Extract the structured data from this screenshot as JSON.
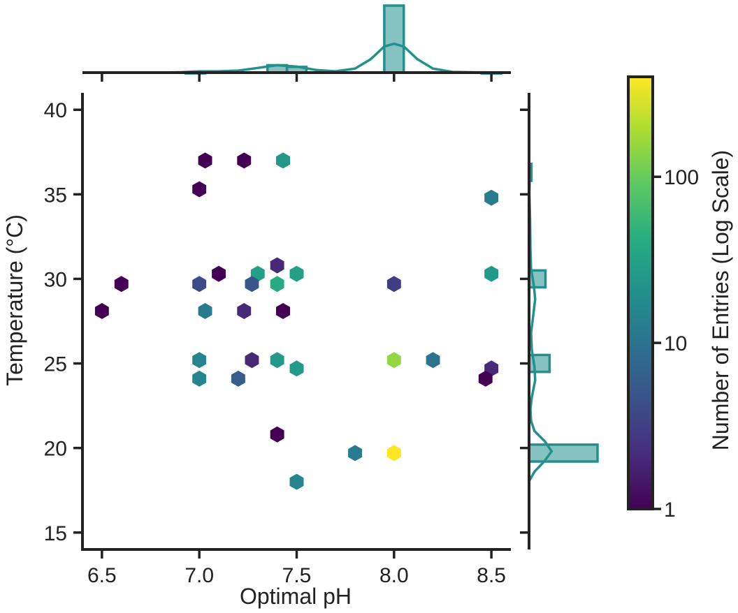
{
  "chart_data": {
    "type": "hexbin-joint",
    "xlabel": "Optimal pH",
    "ylabel": "Temperature (°C)",
    "xlim": [
      6.4,
      8.6
    ],
    "ylim": [
      14,
      41
    ],
    "x_ticks": [
      "6.5",
      "7.0",
      "7.5",
      "8.0",
      "8.5"
    ],
    "x_tick_values": [
      6.5,
      7.0,
      7.5,
      8.0,
      8.5
    ],
    "y_ticks": [
      "15",
      "20",
      "25",
      "30",
      "35",
      "40"
    ],
    "y_tick_values": [
      15,
      20,
      25,
      30,
      35,
      40
    ],
    "hexbins": [
      {
        "x": 7.03,
        "y": 37.0,
        "count": 1
      },
      {
        "x": 7.23,
        "y": 37.0,
        "count": 1
      },
      {
        "x": 7.43,
        "y": 37.0,
        "count": 25
      },
      {
        "x": 7.0,
        "y": 35.3,
        "count": 1
      },
      {
        "x": 8.5,
        "y": 34.8,
        "count": 12
      },
      {
        "x": 7.4,
        "y": 30.8,
        "count": 2
      },
      {
        "x": 7.1,
        "y": 30.3,
        "count": 1
      },
      {
        "x": 7.3,
        "y": 30.3,
        "count": 30
      },
      {
        "x": 7.5,
        "y": 30.3,
        "count": 30
      },
      {
        "x": 8.5,
        "y": 30.3,
        "count": 25
      },
      {
        "x": 6.6,
        "y": 29.7,
        "count": 1
      },
      {
        "x": 7.0,
        "y": 29.7,
        "count": 4
      },
      {
        "x": 7.27,
        "y": 29.7,
        "count": 5
      },
      {
        "x": 7.4,
        "y": 29.7,
        "count": 40
      },
      {
        "x": 8.0,
        "y": 29.7,
        "count": 3
      },
      {
        "x": 6.5,
        "y": 28.1,
        "count": 1
      },
      {
        "x": 7.03,
        "y": 28.1,
        "count": 12
      },
      {
        "x": 7.23,
        "y": 28.1,
        "count": 2
      },
      {
        "x": 7.43,
        "y": 28.1,
        "count": 1
      },
      {
        "x": 7.0,
        "y": 25.2,
        "count": 15
      },
      {
        "x": 7.27,
        "y": 25.2,
        "count": 2
      },
      {
        "x": 7.4,
        "y": 25.2,
        "count": 25
      },
      {
        "x": 8.0,
        "y": 25.2,
        "count": 150
      },
      {
        "x": 8.2,
        "y": 25.2,
        "count": 10
      },
      {
        "x": 7.5,
        "y": 24.7,
        "count": 25
      },
      {
        "x": 8.5,
        "y": 24.7,
        "count": 2
      },
      {
        "x": 7.0,
        "y": 24.1,
        "count": 15
      },
      {
        "x": 7.2,
        "y": 24.1,
        "count": 6
      },
      {
        "x": 8.47,
        "y": 24.1,
        "count": 1
      },
      {
        "x": 7.4,
        "y": 20.8,
        "count": 1
      },
      {
        "x": 7.8,
        "y": 19.7,
        "count": 12
      },
      {
        "x": 8.0,
        "y": 19.7,
        "count": 400
      },
      {
        "x": 7.5,
        "y": 18.0,
        "count": 15
      }
    ],
    "marginal_x_hist": [
      {
        "x0": 6.93,
        "x1": 7.03,
        "height": 0.004
      },
      {
        "x0": 7.35,
        "x1": 7.45,
        "height": 0.11
      },
      {
        "x0": 7.45,
        "x1": 7.55,
        "height": 0.085
      },
      {
        "x0": 7.95,
        "x1": 8.05,
        "height": 1.0
      },
      {
        "x0": 8.45,
        "x1": 8.55,
        "height": 0.003
      }
    ],
    "marginal_x_kde": [
      [
        6.4,
        0
      ],
      [
        6.8,
        0
      ],
      [
        6.9,
        0.005
      ],
      [
        7.0,
        0.02
      ],
      [
        7.1,
        0.02
      ],
      [
        7.2,
        0.03
      ],
      [
        7.3,
        0.07
      ],
      [
        7.4,
        0.11
      ],
      [
        7.5,
        0.09
      ],
      [
        7.6,
        0.04
      ],
      [
        7.7,
        0.02
      ],
      [
        7.8,
        0.06
      ],
      [
        7.88,
        0.2
      ],
      [
        7.95,
        0.39
      ],
      [
        8.0,
        0.43
      ],
      [
        8.05,
        0.39
      ],
      [
        8.12,
        0.2
      ],
      [
        8.2,
        0.06
      ],
      [
        8.3,
        0.01
      ],
      [
        8.4,
        0.005
      ],
      [
        8.6,
        0
      ]
    ],
    "marginal_y_hist": [
      {
        "y0": 19.2,
        "y1": 20.2,
        "height": 1.0
      },
      {
        "y0": 24.5,
        "y1": 25.5,
        "height": 0.3
      },
      {
        "y0": 29.5,
        "y1": 30.5,
        "height": 0.24
      },
      {
        "y0": 35.8,
        "y1": 36.8,
        "height": 0.035
      }
    ],
    "marginal_y_kde": [
      [
        18.1,
        0.01
      ],
      [
        18.6,
        0.08
      ],
      [
        19.2,
        0.22
      ],
      [
        19.8,
        0.33
      ],
      [
        20.4,
        0.23
      ],
      [
        21.0,
        0.08
      ],
      [
        21.6,
        0.03
      ],
      [
        22.3,
        0.02
      ],
      [
        23.0,
        0.04
      ],
      [
        24.0,
        0.09
      ],
      [
        24.8,
        0.08
      ],
      [
        25.8,
        0.04
      ],
      [
        26.8,
        0.03
      ],
      [
        27.8,
        0.06
      ],
      [
        28.8,
        0.09
      ],
      [
        29.6,
        0.07
      ],
      [
        30.6,
        0.03
      ],
      [
        31.8,
        0.02
      ],
      [
        33.5,
        0.015
      ],
      [
        35.0,
        0.005
      ],
      [
        36.3,
        0.01
      ]
    ],
    "colorbar": {
      "label": "Number of Entries (Log Scale)",
      "scale": "log",
      "min": 1,
      "max": 400,
      "ticks": [
        1,
        10,
        100
      ],
      "tick_labels": [
        "1",
        "10",
        "100"
      ],
      "colormap": "viridis"
    },
    "marginal_color": "#23908d",
    "grid": false
  }
}
